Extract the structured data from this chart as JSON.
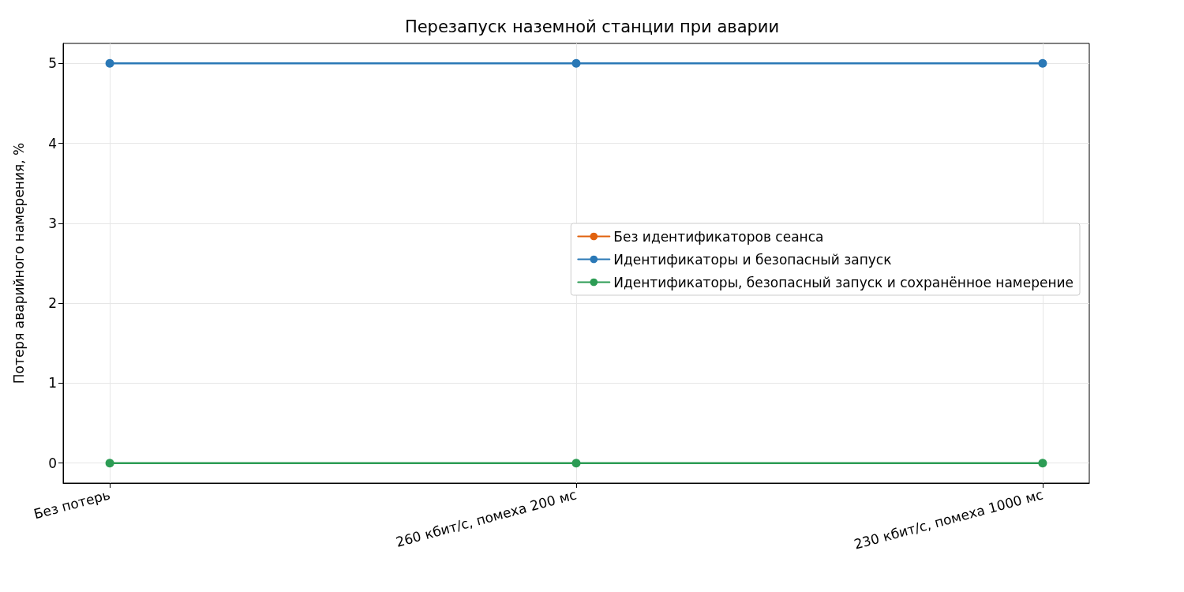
{
  "chart_data": {
    "type": "line",
    "title": "Перезапуск наземной станции при аварии",
    "ylabel": "Потеря аварийного намерения, %",
    "categories": [
      "Без потерь",
      "260 кбит/с, помеха 200 мс",
      "230 кбит/с, помеха 1000 мс"
    ],
    "series": [
      {
        "name": "Без идентификаторов сеанса",
        "color": "#e1620e",
        "values": [
          null,
          null,
          null
        ]
      },
      {
        "name": "Идентификаторы и безопасный запуск",
        "color": "#2a78b6",
        "values": [
          5,
          5,
          5
        ]
      },
      {
        "name": "Идентификаторы, безопасный запуск и сохранённое намерение",
        "color": "#2c9c54",
        "values": [
          0,
          0,
          0
        ]
      }
    ],
    "ylim": [
      -0.25,
      5.25
    ],
    "yticks": [
      0,
      1,
      2,
      3,
      4,
      5
    ],
    "grid": true,
    "legend": "right",
    "marker": "circle",
    "line_style": "solid"
  }
}
